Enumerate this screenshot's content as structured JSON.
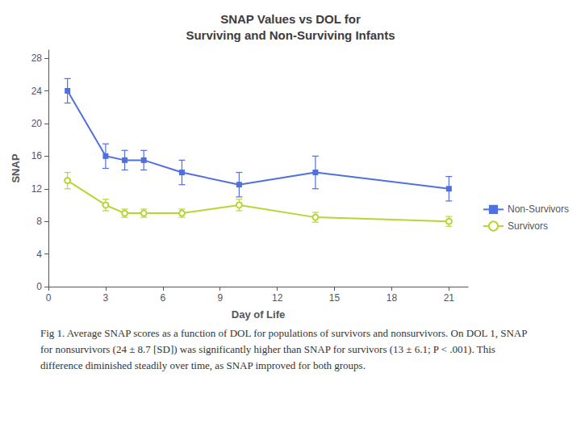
{
  "chart_data": {
    "type": "line",
    "title": "SNAP Values vs DOL for\nSurviving and Non-Surviving Infants",
    "xlabel": "Day of Life",
    "ylabel": "SNAP",
    "xlim": [
      0,
      22
    ],
    "ylim": [
      0,
      29
    ],
    "xticks": [
      0,
      3,
      6,
      9,
      12,
      15,
      18,
      21
    ],
    "yticks": [
      0,
      4,
      8,
      12,
      16,
      20,
      24,
      28
    ],
    "grid": false,
    "legend": "right",
    "x": [
      1,
      3,
      4,
      5,
      7,
      10,
      14,
      21
    ],
    "series": [
      {
        "name": "Non-Survivors",
        "marker": "square",
        "values": [
          24,
          16,
          15.5,
          15.5,
          14,
          12.5,
          14,
          12
        ],
        "yerr": [
          1.5,
          1.5,
          1.2,
          1.2,
          1.5,
          1.5,
          2.0,
          1.5
        ]
      },
      {
        "name": "Survivors",
        "marker": "open_circle",
        "values": [
          13,
          10,
          9,
          9,
          9,
          10,
          8.5,
          8
        ],
        "yerr": [
          1.0,
          0.7,
          0.5,
          0.5,
          0.5,
          0.7,
          0.6,
          0.6
        ]
      }
    ],
    "caption": "Fig 1. Average SNAP scores as a function of DOL for populations of survivors and nonsurvivors. On DOL 1, SNAP for nonsurvivors (24 ± 8.7 [SD]) was significantly higher than SNAP for survivors (13 ± 6.1; P < .001). This difference diminished steadily over time, as SNAP improved for both groups."
  }
}
